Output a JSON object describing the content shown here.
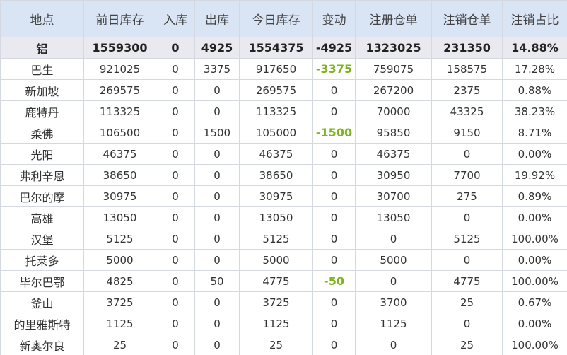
{
  "table": {
    "header": [
      "地点",
      "前日库存",
      "入库",
      "出库",
      "今日库存",
      "变动",
      "注册仓单",
      "注销仓单",
      "注销占比"
    ],
    "total": [
      "铝",
      "1559300",
      "0",
      "4925",
      "1554375",
      "-4925",
      "1323025",
      "231350",
      "14.88%"
    ],
    "rows": [
      [
        "巴生",
        "921025",
        "0",
        "3375",
        "917650",
        "-3375",
        "759075",
        "158575",
        "17.28%"
      ],
      [
        "新加坡",
        "269575",
        "0",
        "0",
        "269575",
        "0",
        "267200",
        "2375",
        "0.88%"
      ],
      [
        "鹿特丹",
        "113325",
        "0",
        "0",
        "113325",
        "0",
        "70000",
        "43325",
        "38.23%"
      ],
      [
        "柔佛",
        "106500",
        "0",
        "1500",
        "105000",
        "-1500",
        "95850",
        "9150",
        "8.71%"
      ],
      [
        "光阳",
        "46375",
        "0",
        "0",
        "46375",
        "0",
        "46375",
        "0",
        "0.00%"
      ],
      [
        "弗利辛恩",
        "38650",
        "0",
        "0",
        "38650",
        "0",
        "30950",
        "7700",
        "19.92%"
      ],
      [
        "巴尔的摩",
        "30975",
        "0",
        "0",
        "30975",
        "0",
        "30700",
        "275",
        "0.89%"
      ],
      [
        "高雄",
        "13050",
        "0",
        "0",
        "13050",
        "0",
        "13050",
        "0",
        "0.00%"
      ],
      [
        "汉堡",
        "5125",
        "0",
        "0",
        "5125",
        "0",
        "0",
        "5125",
        "100.00%"
      ],
      [
        "托莱多",
        "5000",
        "0",
        "0",
        "5000",
        "0",
        "5000",
        "0",
        "0.00%"
      ],
      [
        "毕尔巴鄂",
        "4825",
        "0",
        "50",
        "4775",
        "-50",
        "0",
        "4775",
        "100.00%"
      ],
      [
        "釜山",
        "3725",
        "0",
        "0",
        "3725",
        "0",
        "3700",
        "25",
        "0.67%"
      ],
      [
        "的里雅斯特",
        "1125",
        "0",
        "0",
        "1125",
        "0",
        "1125",
        "0",
        "0.00%"
      ],
      [
        "新奥尔良",
        "25",
        "0",
        "0",
        "25",
        "0",
        "0",
        "25",
        "100.00%"
      ]
    ]
  }
}
